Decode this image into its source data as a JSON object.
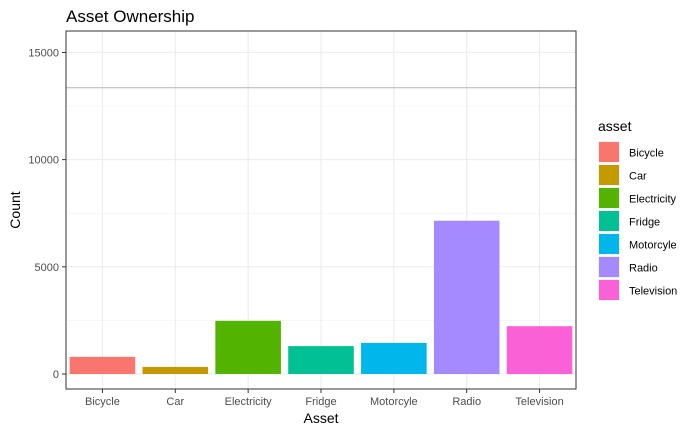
{
  "chart_data": {
    "type": "bar",
    "title": "Asset Ownership",
    "xlabel": "Asset",
    "ylabel": "Count",
    "categories": [
      "Bicycle",
      "Car",
      "Electricity",
      "Fridge",
      "Motorcyle",
      "Radio",
      "Television"
    ],
    "values": [
      800,
      330,
      2480,
      1300,
      1450,
      7150,
      2230
    ],
    "colors": [
      "#F8766D",
      "#C49A00",
      "#53B400",
      "#00C094",
      "#00B6EB",
      "#A58AFF",
      "#FB61D7"
    ],
    "ylim": [
      -700,
      16000
    ],
    "yticks": [
      0,
      5000,
      10000,
      15000
    ],
    "ytick_labels": [
      "0",
      "5000",
      "10000",
      "15000"
    ],
    "reference_line": 13350,
    "grid": true,
    "legend": {
      "title": "asset",
      "position": "right",
      "entries": [
        "Bicycle",
        "Car",
        "Electricity",
        "Fridge",
        "Motorcyle",
        "Radio",
        "Television"
      ]
    }
  }
}
